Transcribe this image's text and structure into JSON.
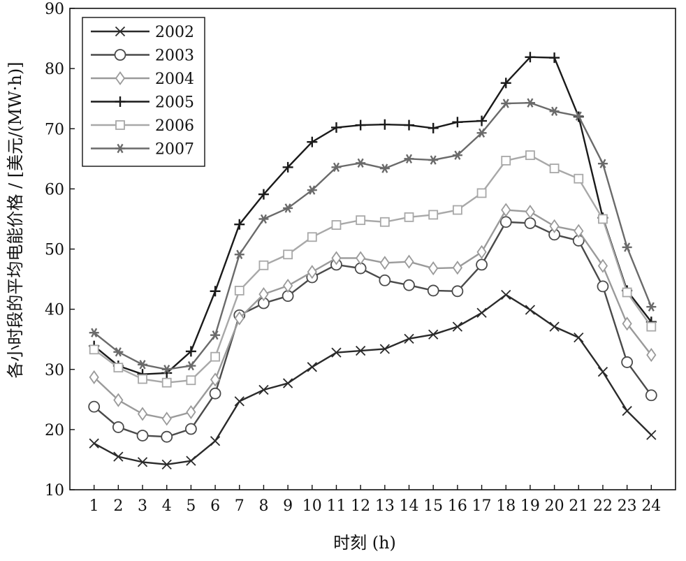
{
  "chart_data": {
    "type": "line",
    "xlabel": "时刻 (h)",
    "ylabel": "各小时段的平均电能价格 / [美元/(MW·h)]",
    "x": [
      1,
      2,
      3,
      4,
      5,
      6,
      7,
      8,
      9,
      10,
      11,
      12,
      13,
      14,
      15,
      16,
      17,
      18,
      19,
      20,
      21,
      22,
      23,
      24
    ],
    "xlim": [
      0,
      25
    ],
    "ylim": [
      10,
      90
    ],
    "yticks": [
      10,
      20,
      30,
      40,
      50,
      60,
      70,
      80,
      90
    ],
    "grid": false,
    "legend_position": "top-left",
    "series": [
      {
        "name": "2002",
        "marker": "x",
        "color": "#2a2a2a",
        "values": [
          17.7,
          15.5,
          14.6,
          14.2,
          14.8,
          18.1,
          24.7,
          26.6,
          27.7,
          30.4,
          32.8,
          33.1,
          33.4,
          35.1,
          35.8,
          37.1,
          39.4,
          42.4,
          39.9,
          37.1,
          35.3,
          29.6,
          23.1,
          19.1
        ]
      },
      {
        "name": "2003",
        "marker": "circle",
        "color": "#4a4a4a",
        "values": [
          23.8,
          20.4,
          19.0,
          18.8,
          20.1,
          26.0,
          39.0,
          41.0,
          42.2,
          45.3,
          47.4,
          46.8,
          44.8,
          44.0,
          43.1,
          43.0,
          47.4,
          54.5,
          54.3,
          52.4,
          51.4,
          43.8,
          31.2,
          25.7
        ]
      },
      {
        "name": "2004",
        "marker": "diamond",
        "color": "#9a9a9a",
        "values": [
          28.7,
          24.9,
          22.6,
          21.8,
          22.9,
          28.3,
          38.5,
          42.5,
          43.9,
          46.2,
          48.5,
          48.5,
          47.7,
          47.9,
          46.8,
          46.9,
          49.5,
          56.5,
          56.2,
          53.8,
          53.0,
          47.2,
          37.6,
          32.4
        ]
      },
      {
        "name": "2005",
        "marker": "plus",
        "color": "#1a1a1a",
        "values": [
          33.9,
          30.6,
          29.2,
          29.4,
          33.0,
          43.0,
          54.1,
          59.1,
          63.6,
          67.8,
          70.2,
          70.6,
          70.7,
          70.6,
          70.1,
          71.1,
          71.3,
          77.6,
          81.9,
          81.8,
          72.0,
          55.2,
          43.1,
          37.9
        ]
      },
      {
        "name": "2006",
        "marker": "square",
        "color": "#a8a8a8",
        "values": [
          33.3,
          30.3,
          28.4,
          27.8,
          28.2,
          32.1,
          43.1,
          47.3,
          49.1,
          52.0,
          54.0,
          54.8,
          54.5,
          55.3,
          55.7,
          56.5,
          59.3,
          64.7,
          65.6,
          63.4,
          61.7,
          55.0,
          42.8,
          37.1
        ]
      },
      {
        "name": "2007",
        "marker": "asterisk",
        "color": "#6a6a6a",
        "values": [
          36.1,
          32.9,
          30.8,
          30.0,
          30.6,
          35.7,
          49.1,
          55.0,
          56.8,
          59.8,
          63.6,
          64.3,
          63.4,
          65.0,
          64.8,
          65.6,
          69.3,
          74.2,
          74.3,
          72.9,
          72.1,
          64.2,
          50.3,
          40.4
        ]
      }
    ]
  }
}
